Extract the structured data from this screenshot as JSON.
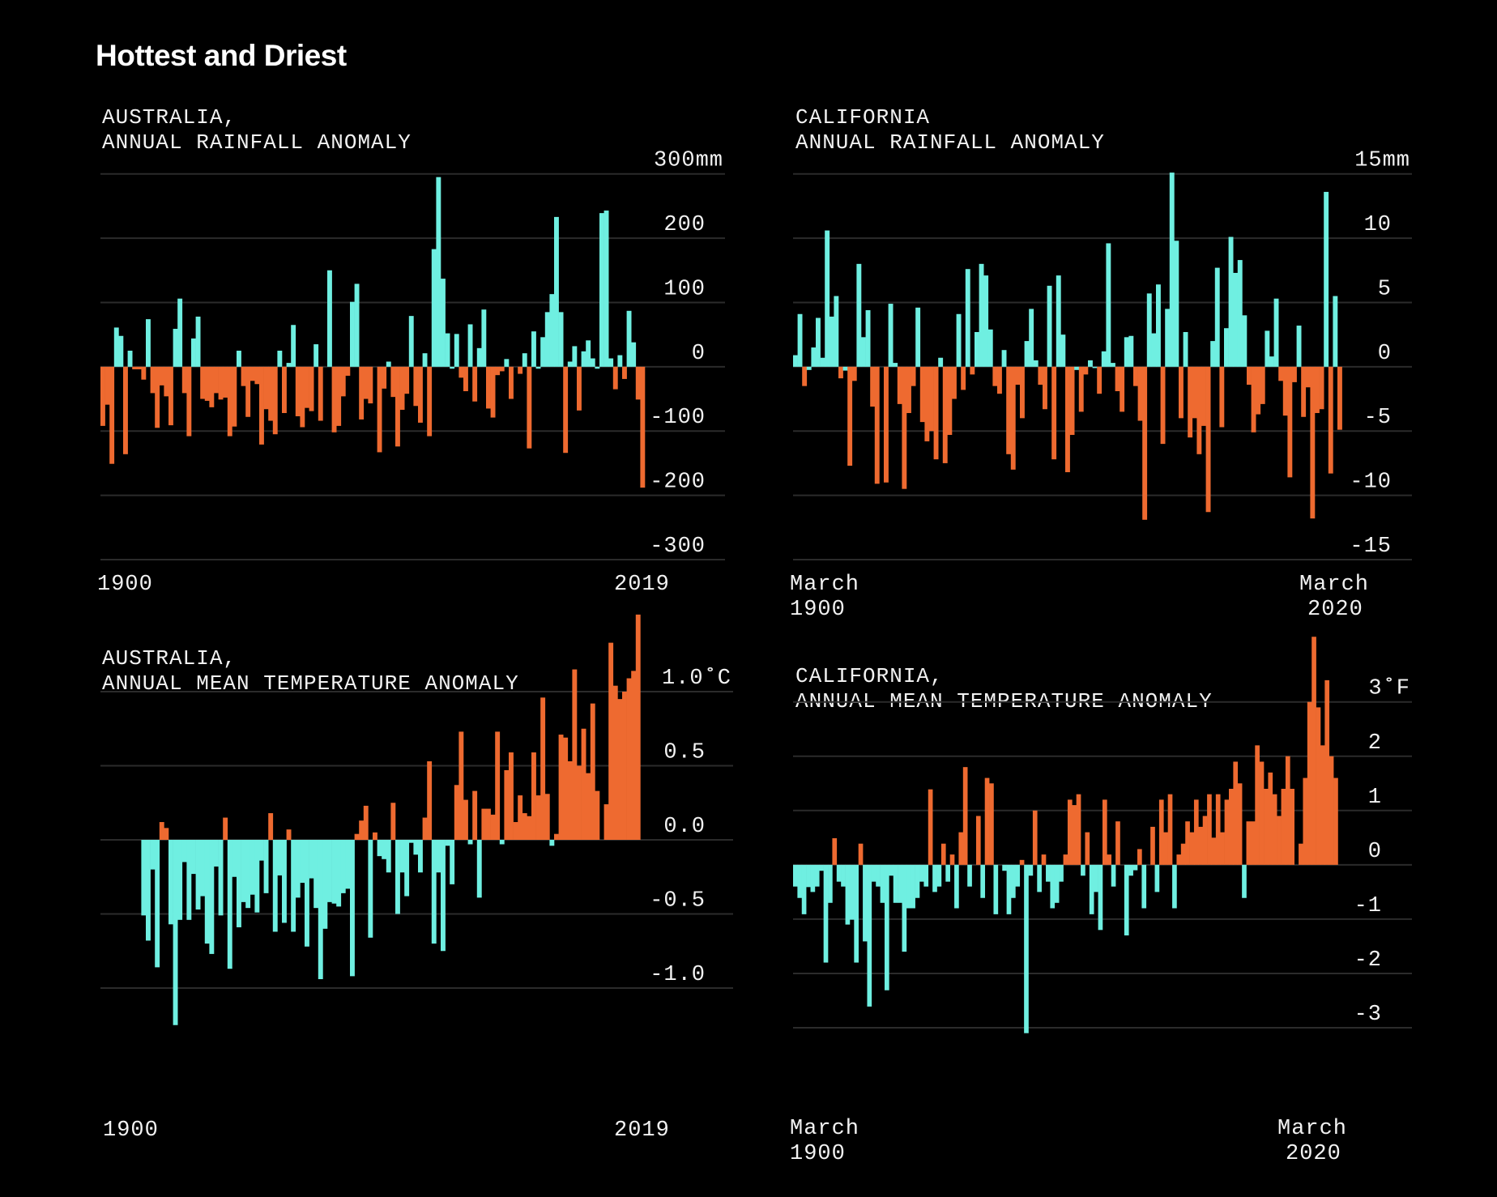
{
  "page_title": "Hottest and Driest",
  "colors": {
    "positive": "#EE6A30",
    "negative": "#6FEFE1",
    "wet": "#6FEFE1",
    "dry": "#EE6A30",
    "grid": "#2B2B2B",
    "background": "#000000"
  },
  "chart_data": [
    {
      "id": "aus_rain",
      "type": "bar",
      "title_lines": [
        "AUSTRALIA,",
        "ANNUAL RAINFALL ANOMALY"
      ],
      "unit": "mm",
      "x_start_label": "1900",
      "x_end_label": "2019",
      "x": {
        "start_year": 1900,
        "end_year": 2019
      },
      "ylim": [
        -300,
        300
      ],
      "yticks": [
        300,
        200,
        100,
        0,
        -100,
        -200,
        -300
      ],
      "ytick_labels": [
        "300mm",
        "200",
        "100",
        "0",
        "-100",
        "-200",
        "-300"
      ],
      "color_rule": "positive=wet(cyan), negative=dry(orange)",
      "values": [
        -92,
        -59,
        -151,
        61,
        48,
        -136,
        25,
        -4,
        -4,
        -20,
        74,
        -41,
        -95,
        -29,
        -46,
        -91,
        59,
        106,
        -41,
        -108,
        44,
        78,
        -50,
        -53,
        -63,
        -41,
        -51,
        -48,
        -108,
        -93,
        25,
        -30,
        -78,
        -22,
        -27,
        -121,
        -66,
        -84,
        -105,
        25,
        -72,
        6,
        65,
        -77,
        -94,
        -64,
        -69,
        35,
        -84,
        0,
        150,
        -102,
        -92,
        -46,
        -14,
        101,
        129,
        -82,
        -50,
        -57,
        0,
        -133,
        -34,
        8,
        -47,
        -124,
        -67,
        -42,
        79,
        -61,
        -87,
        21,
        -108,
        183,
        295,
        137,
        52,
        -3,
        51,
        -17,
        -38,
        66,
        -54,
        29,
        89,
        -65,
        -79,
        -13,
        -7,
        12,
        -50,
        0,
        -11,
        21,
        -127,
        55,
        -3,
        46,
        85,
        113,
        233,
        85,
        -134,
        8,
        32,
        -68,
        24,
        41,
        13,
        -3,
        239,
        243,
        13,
        -35,
        18,
        -19,
        87,
        38,
        -51,
        -188
      ]
    },
    {
      "id": "cal_rain",
      "type": "bar",
      "title_lines": [
        "CALIFORNIA",
        "ANNUAL RAINFALL ANOMALY"
      ],
      "unit": "mm",
      "x_start_label": "March\n1900",
      "x_end_label": "March\n2020",
      "x_start_label_lines": [
        "March",
        "1900"
      ],
      "x_end_label_lines": [
        "March",
        "2020"
      ],
      "ylim": [
        -15,
        15
      ],
      "yticks": [
        15,
        10,
        5,
        0,
        -5,
        -10,
        -15
      ],
      "ytick_labels": [
        "15mm",
        "10",
        "5",
        "0",
        "-5",
        "-10",
        "-15"
      ],
      "color_rule": "positive=wet(cyan), negative=dry(orange)",
      "values": [
        0.9,
        4.1,
        -1.5,
        -0.25,
        1.5,
        3.8,
        0.7,
        10.6,
        3.9,
        5.5,
        -0.9,
        -0.3,
        -7.7,
        -1.1,
        8.0,
        2.3,
        4.4,
        -3.1,
        -9.1,
        0,
        -9.0,
        4.9,
        0.3,
        -2.9,
        -9.5,
        -3.6,
        -1.5,
        4.6,
        -4.3,
        -5.8,
        -5.0,
        -7.2,
        0.7,
        -7.5,
        -5.3,
        -2.5,
        4.1,
        -1.8,
        7.6,
        -0.6,
        2.7,
        8.0,
        7.1,
        2.9,
        -1.5,
        -2.1,
        1.3,
        -6.8,
        -8.0,
        -1.4,
        -4.0,
        2.0,
        4.5,
        0.5,
        -1.4,
        -3.3,
        6.3,
        -7.2,
        7.1,
        2.5,
        -8.2,
        -5.3,
        -0.25,
        -3.5,
        -0.6,
        0.5,
        -0.1,
        -2.1,
        1.2,
        9.6,
        0.3,
        -1.9,
        -3.5,
        2.3,
        2.4,
        -1.5,
        -4.2,
        -11.9,
        5.7,
        2.6,
        6.4,
        -6.0,
        4.5,
        15.1,
        9.8,
        -4.0,
        2.7,
        -5.5,
        -4.0,
        -6.8,
        -4.6,
        -11.3,
        2.0,
        7.7,
        -4.7,
        3.0,
        10.1,
        7.3,
        8.3,
        4.0,
        -1.4,
        -5.1,
        -3.7,
        -2.9,
        2.8,
        0.8,
        5.3,
        -1.1,
        -3.8,
        -8.6,
        -1.2,
        3.2,
        -3.9,
        -1.6,
        -11.8,
        -3.6,
        -3.3,
        13.6,
        -8.3,
        5.5,
        -4.9
      ]
    },
    {
      "id": "aus_temp",
      "type": "bar",
      "title_lines": [
        "AUSTRALIA,",
        "ANNUAL MEAN TEMPERATURE ANOMALY"
      ],
      "unit": "°C",
      "x_start_label": "1900",
      "x_end_label": "2019",
      "x": {
        "axis_start_year": 1900,
        "axis_end_year": 2019,
        "data_start_year": 1910
      },
      "ylim": [
        -1.0,
        1.0
      ],
      "yticks": [
        1.0,
        0.5,
        0.0,
        -0.5,
        -1.0
      ],
      "ytick_labels": [
        "1.0˚C",
        "0.5",
        "0.0",
        "-0.5",
        "-1.0"
      ],
      "color_rule": "positive=hot(orange), negative=cool(cyan)",
      "values": [
        -0.51,
        -0.68,
        -0.2,
        -0.86,
        0.12,
        0.08,
        -0.57,
        -1.25,
        -0.54,
        -0.15,
        -0.54,
        -0.23,
        -0.47,
        -0.38,
        -0.7,
        -0.77,
        -0.18,
        -0.51,
        0.15,
        -0.87,
        -0.25,
        -0.59,
        -0.42,
        -0.46,
        -0.37,
        -0.49,
        -0.14,
        -0.36,
        0.18,
        -0.62,
        -0.24,
        -0.56,
        0.07,
        -0.62,
        -0.39,
        -0.29,
        -0.72,
        -0.26,
        -0.46,
        -0.94,
        -0.6,
        -0.42,
        -0.43,
        -0.45,
        -0.36,
        -0.33,
        -0.92,
        0.04,
        0.13,
        0.23,
        -0.66,
        0.05,
        -0.11,
        -0.13,
        -0.22,
        0.25,
        -0.5,
        -0.22,
        -0.38,
        -0.02,
        -0.1,
        -0.22,
        0.15,
        0.53,
        -0.7,
        -0.22,
        -0.75,
        -0.04,
        -0.3,
        0.37,
        0.73,
        0.27,
        -0.03,
        0.33,
        -0.39,
        0.21,
        0.21,
        0.17,
        0.73,
        -0.03,
        0.47,
        0.59,
        0.12,
        0.3,
        0.18,
        0.16,
        0.59,
        0.3,
        0.96,
        0.31,
        -0.04,
        0.04,
        0.71,
        0.69,
        0.53,
        1.15,
        0.5,
        0.75,
        0.45,
        0.92,
        0.33,
        0,
        0.24,
        1.33,
        1.04,
        0.95,
        1.0,
        1.09,
        1.14,
        1.52
      ]
    },
    {
      "id": "cal_temp",
      "type": "bar",
      "title_lines": [
        "CALIFORNIA,",
        "ANNUAL MEAN TEMPERATURE ANOMALY"
      ],
      "unit": "°F",
      "x_start_label_lines": [
        "March",
        "1900"
      ],
      "x_end_label_lines": [
        "March",
        "2020"
      ],
      "ylim": [
        -3,
        3
      ],
      "yticks": [
        3,
        2,
        1,
        0,
        -1,
        -2,
        -3
      ],
      "ytick_labels": [
        "3˚F",
        "2",
        "1",
        "0",
        "-1",
        "-2",
        "-3"
      ],
      "color_rule": "positive=hot(orange), negative=cool(cyan)",
      "values": [
        -0.4,
        -0.61,
        -0.91,
        -0.41,
        -0.5,
        -0.4,
        -0.11,
        -1.8,
        -0.7,
        0.49,
        -0.31,
        -0.4,
        -1.1,
        -1.01,
        -1.8,
        0.39,
        -1.41,
        -2.61,
        -0.31,
        -0.4,
        -0.7,
        -2.31,
        -0.2,
        -0.7,
        -0.7,
        -1.6,
        -0.8,
        -0.8,
        -0.61,
        -0.31,
        -0.4,
        1.39,
        -0.5,
        -0.4,
        0.39,
        -0.31,
        0.19,
        -0.8,
        0.6,
        1.8,
        -0.4,
        0,
        0.9,
        -0.61,
        1.6,
        1.5,
        -0.91,
        0,
        -0.11,
        -0.91,
        -0.61,
        -0.4,
        0.09,
        -3.1,
        -0.2,
        1.0,
        -0.5,
        0.19,
        -0.31,
        -0.8,
        -0.7,
        -0.31,
        0.19,
        1.2,
        1.1,
        1.3,
        -0.2,
        0.6,
        -0.91,
        -0.5,
        -1.2,
        1.2,
        0.19,
        -0.4,
        0.8,
        0,
        -1.3,
        -0.2,
        -0.1,
        0.29,
        -0.8,
        0,
        0.7,
        -0.5,
        1.2,
        0.6,
        1.3,
        -0.8,
        0.19,
        0.39,
        0.8,
        0.6,
        1.2,
        0.7,
        0.9,
        1.3,
        0.5,
        1.3,
        0.6,
        1.2,
        1.4,
        1.9,
        1.5,
        -0.61,
        0.8,
        0.8,
        2.2,
        1.9,
        1.4,
        1.7,
        1.3,
        0.9,
        1.4,
        2.0,
        1.4,
        0,
        0.39,
        1.6,
        3.0,
        4.2,
        2.9,
        2.2,
        3.4,
        2.0,
        1.6
      ]
    }
  ]
}
